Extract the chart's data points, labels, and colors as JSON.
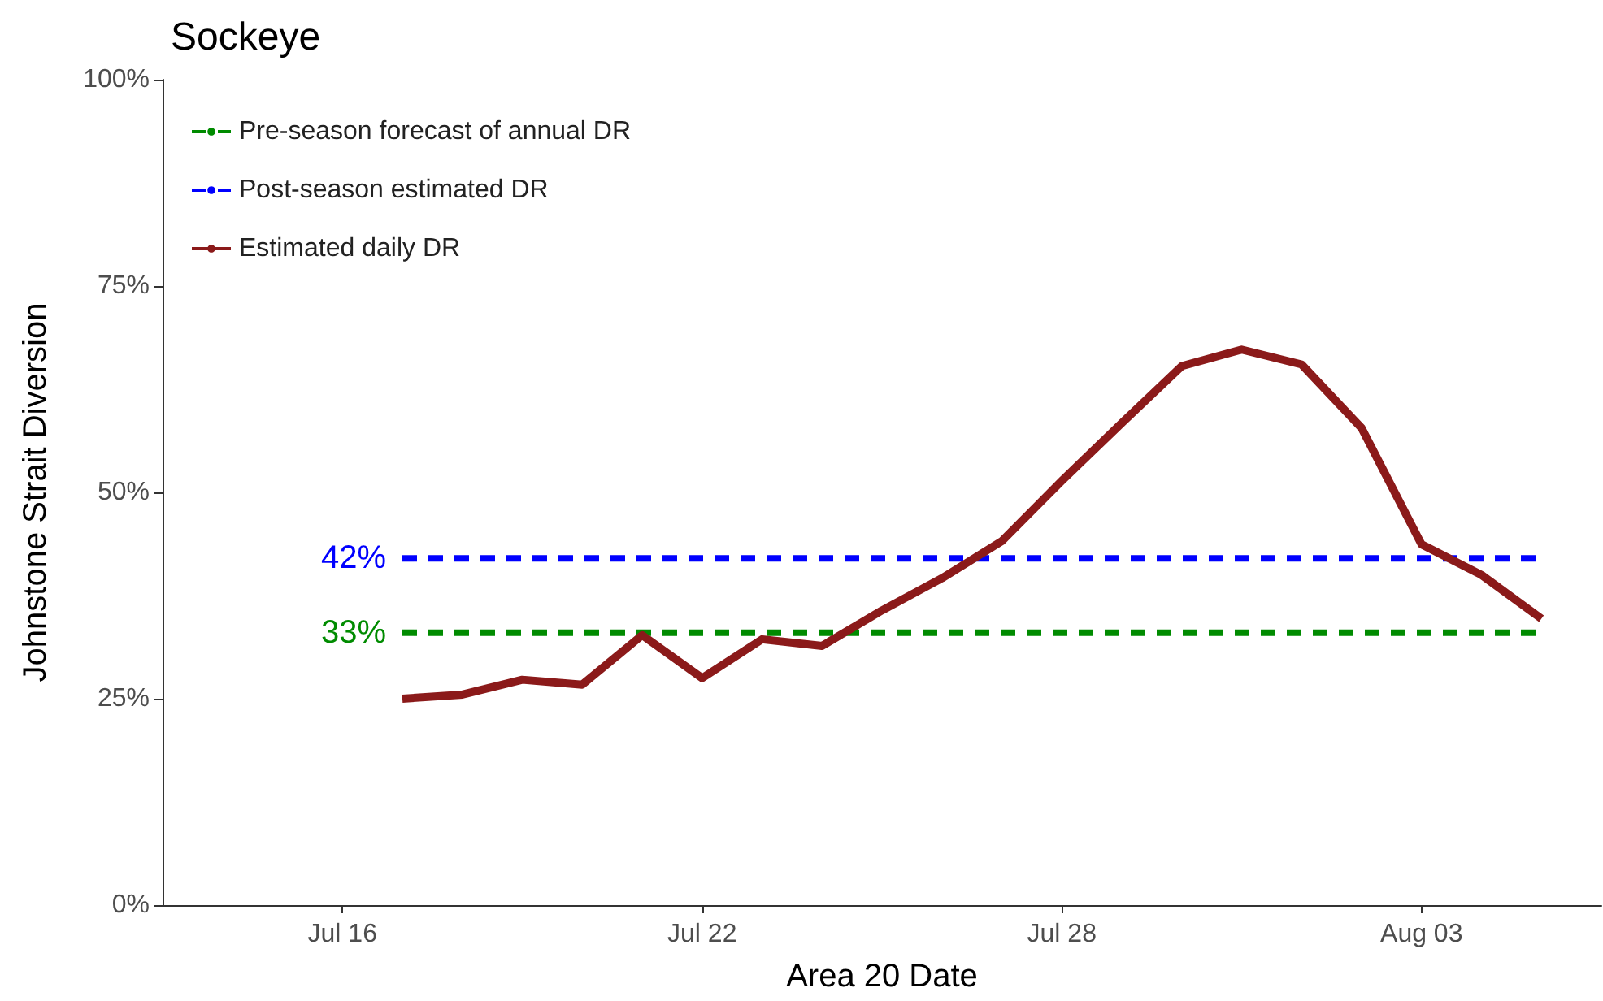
{
  "chart_data": {
    "type": "line",
    "title": "Sockeye",
    "xlabel": "Area 20 Date",
    "ylabel": "Johnstone Strait Diversion",
    "xlim": [
      "--07-13",
      "--08-06"
    ],
    "xticks": [
      {
        "value": "--07-16",
        "label": "Jul 16"
      },
      {
        "value": "--07-22",
        "label": "Jul 22"
      },
      {
        "value": "--07-28",
        "label": "Jul 28"
      },
      {
        "value": "--08-03",
        "label": "Aug 03"
      }
    ],
    "ylim": [
      0,
      100
    ],
    "yticks": [
      {
        "value": 0,
        "label": "0%"
      },
      {
        "value": 25,
        "label": "25%"
      },
      {
        "value": 50,
        "label": "50%"
      },
      {
        "value": 75,
        "label": "75%"
      },
      {
        "value": 100,
        "label": "100%"
      }
    ],
    "grid": false,
    "legend": "top left",
    "marker": "none",
    "series": [
      {
        "name": "Pre-season forecast of annual DR",
        "color": "#008b00",
        "line_style": "dashed",
        "x": [
          "--07-17",
          "--08-05"
        ],
        "values": [
          33,
          33
        ],
        "value_labels": [
          "33%",
          null
        ]
      },
      {
        "name": "Post-season estimated DR",
        "color": "#0000ff",
        "line_style": "dashed",
        "x": [
          "--07-17",
          "--08-05"
        ],
        "values": [
          42,
          42
        ],
        "value_labels": [
          "42%",
          null
        ]
      },
      {
        "name": "Estimated daily DR",
        "color": "#8b1a1a",
        "line_style": "solid",
        "x": [
          "--07-17",
          "--07-18",
          "--07-19",
          "--07-20",
          "--07-21",
          "--07-22",
          "--07-23",
          "--07-24",
          "--07-25",
          "--07-26",
          "--07-27",
          "--07-28",
          "--07-29",
          "--07-30",
          "--07-31",
          "--08-01",
          "--08-02",
          "--08-03",
          "--08-04",
          "--08-05"
        ],
        "values": [
          25,
          25.5,
          27.3,
          26.7,
          32.7,
          27.5,
          32.2,
          31.4,
          35.7,
          39.6,
          44.1,
          51.4,
          58.4,
          65.3,
          67.3,
          65.5,
          57.8,
          43.7,
          40,
          34.7
        ]
      }
    ]
  }
}
